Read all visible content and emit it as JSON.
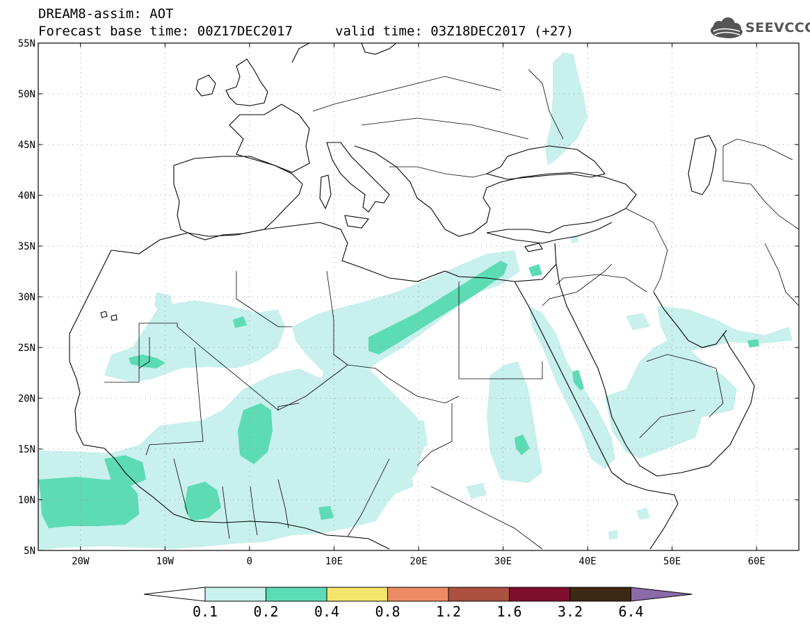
{
  "header": {
    "title_line1": "DREAM8-assim: AOT",
    "title_line2": "Forecast base time: 00Z17DEC2017",
    "valid_time": "valid time: 03Z18DEC2017 (+27)"
  },
  "logo": {
    "text": "SEEVCCC",
    "icon": "cloud-logo-icon"
  },
  "map": {
    "lon_range": [
      -25,
      65
    ],
    "lat_range": [
      5,
      55
    ],
    "lon_ticks": [
      {
        "value": -20,
        "label": "20W"
      },
      {
        "value": -10,
        "label": "10W"
      },
      {
        "value": 0,
        "label": "0"
      },
      {
        "value": 10,
        "label": "10E"
      },
      {
        "value": 20,
        "label": "20E"
      },
      {
        "value": 30,
        "label": "30E"
      },
      {
        "value": 40,
        "label": "40E"
      },
      {
        "value": 50,
        "label": "50E"
      },
      {
        "value": 60,
        "label": "60E"
      }
    ],
    "lat_ticks": [
      {
        "value": 5,
        "label": "5N"
      },
      {
        "value": 10,
        "label": "10N"
      },
      {
        "value": 15,
        "label": "15N"
      },
      {
        "value": 20,
        "label": "20N"
      },
      {
        "value": 25,
        "label": "25N"
      },
      {
        "value": 30,
        "label": "30N"
      },
      {
        "value": 35,
        "label": "35N"
      },
      {
        "value": 40,
        "label": "40N"
      },
      {
        "value": 45,
        "label": "45N"
      },
      {
        "value": 50,
        "label": "50N"
      },
      {
        "value": 55,
        "label": "55N"
      }
    ],
    "grid": true
  },
  "colorbar": {
    "colors": [
      "#c8f0ec",
      "#5ddbb5",
      "#f3e46c",
      "#ec8b64",
      "#ac5040",
      "#7d0f2c",
      "#3c2814",
      "#8c6aa8"
    ],
    "labels": [
      "0.1",
      "0.2",
      "0.4",
      "0.8",
      "1.2",
      "1.6",
      "3.2",
      "6.4"
    ]
  }
}
